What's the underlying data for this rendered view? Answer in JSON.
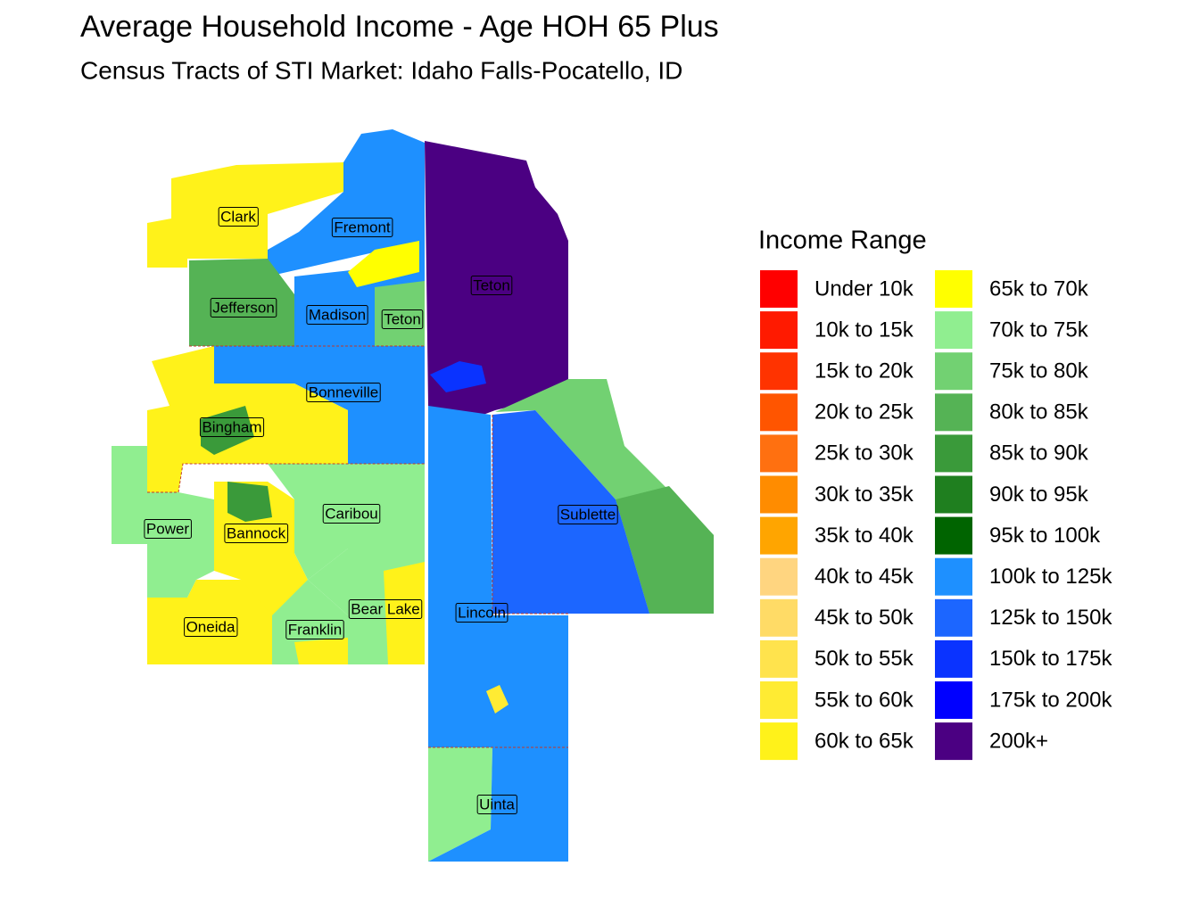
{
  "title": "Average Household Income - Age HOH 65 Plus",
  "subtitle": "Census Tracts of STI Market: Idaho Falls-Pocatello, ID",
  "legend": {
    "title": "Income Range",
    "items": [
      {
        "label": "Under 10k",
        "color": "#ff0000"
      },
      {
        "label": "10k to 15k",
        "color": "#ff1a00"
      },
      {
        "label": "15k to 20k",
        "color": "#ff3300"
      },
      {
        "label": "20k to 25k",
        "color": "#ff5500"
      },
      {
        "label": "25k to 30k",
        "color": "#ff7010"
      },
      {
        "label": "30k to 35k",
        "color": "#ff8c00"
      },
      {
        "label": "35k to 40k",
        "color": "#ffa500"
      },
      {
        "label": "40k to 45k",
        "color": "#ffd580"
      },
      {
        "label": "45k to 50k",
        "color": "#ffdb66"
      },
      {
        "label": "50k to 55k",
        "color": "#ffe34d"
      },
      {
        "label": "55k to 60k",
        "color": "#ffeb33"
      },
      {
        "label": "60k to 65k",
        "color": "#fff21a"
      },
      {
        "label": "65k to 70k",
        "color": "#ffff00"
      },
      {
        "label": "70k to 75k",
        "color": "#90ee90"
      },
      {
        "label": "75k to 80k",
        "color": "#72d172"
      },
      {
        "label": "80k to 85k",
        "color": "#55b355"
      },
      {
        "label": "85k to 90k",
        "color": "#3a9a3a"
      },
      {
        "label": "90k to 95k",
        "color": "#1f7f1f"
      },
      {
        "label": "95k to 100k",
        "color": "#006400"
      },
      {
        "label": "100k to 125k",
        "color": "#1e90ff"
      },
      {
        "label": "125k to 150k",
        "color": "#1c66ff"
      },
      {
        "label": "150k to 175k",
        "color": "#0a33ff"
      },
      {
        "label": "175k to 200k",
        "color": "#0000ff"
      },
      {
        "label": "200k+",
        "color": "#4b0082"
      }
    ]
  },
  "counties": [
    {
      "label": "Clark"
    },
    {
      "label": "Fremont"
    },
    {
      "label": "Jefferson"
    },
    {
      "label": "Madison"
    },
    {
      "label": "Teton"
    },
    {
      "label": "Teton"
    },
    {
      "label": "Bonneville"
    },
    {
      "label": "Bingham"
    },
    {
      "label": "Caribou"
    },
    {
      "label": "Power"
    },
    {
      "label": "Bannock"
    },
    {
      "label": "Sublette"
    },
    {
      "label": "Bear Lake"
    },
    {
      "label": "Lincoln"
    },
    {
      "label": "Oneida"
    },
    {
      "label": "Franklin"
    },
    {
      "label": "Uinta"
    }
  ]
}
